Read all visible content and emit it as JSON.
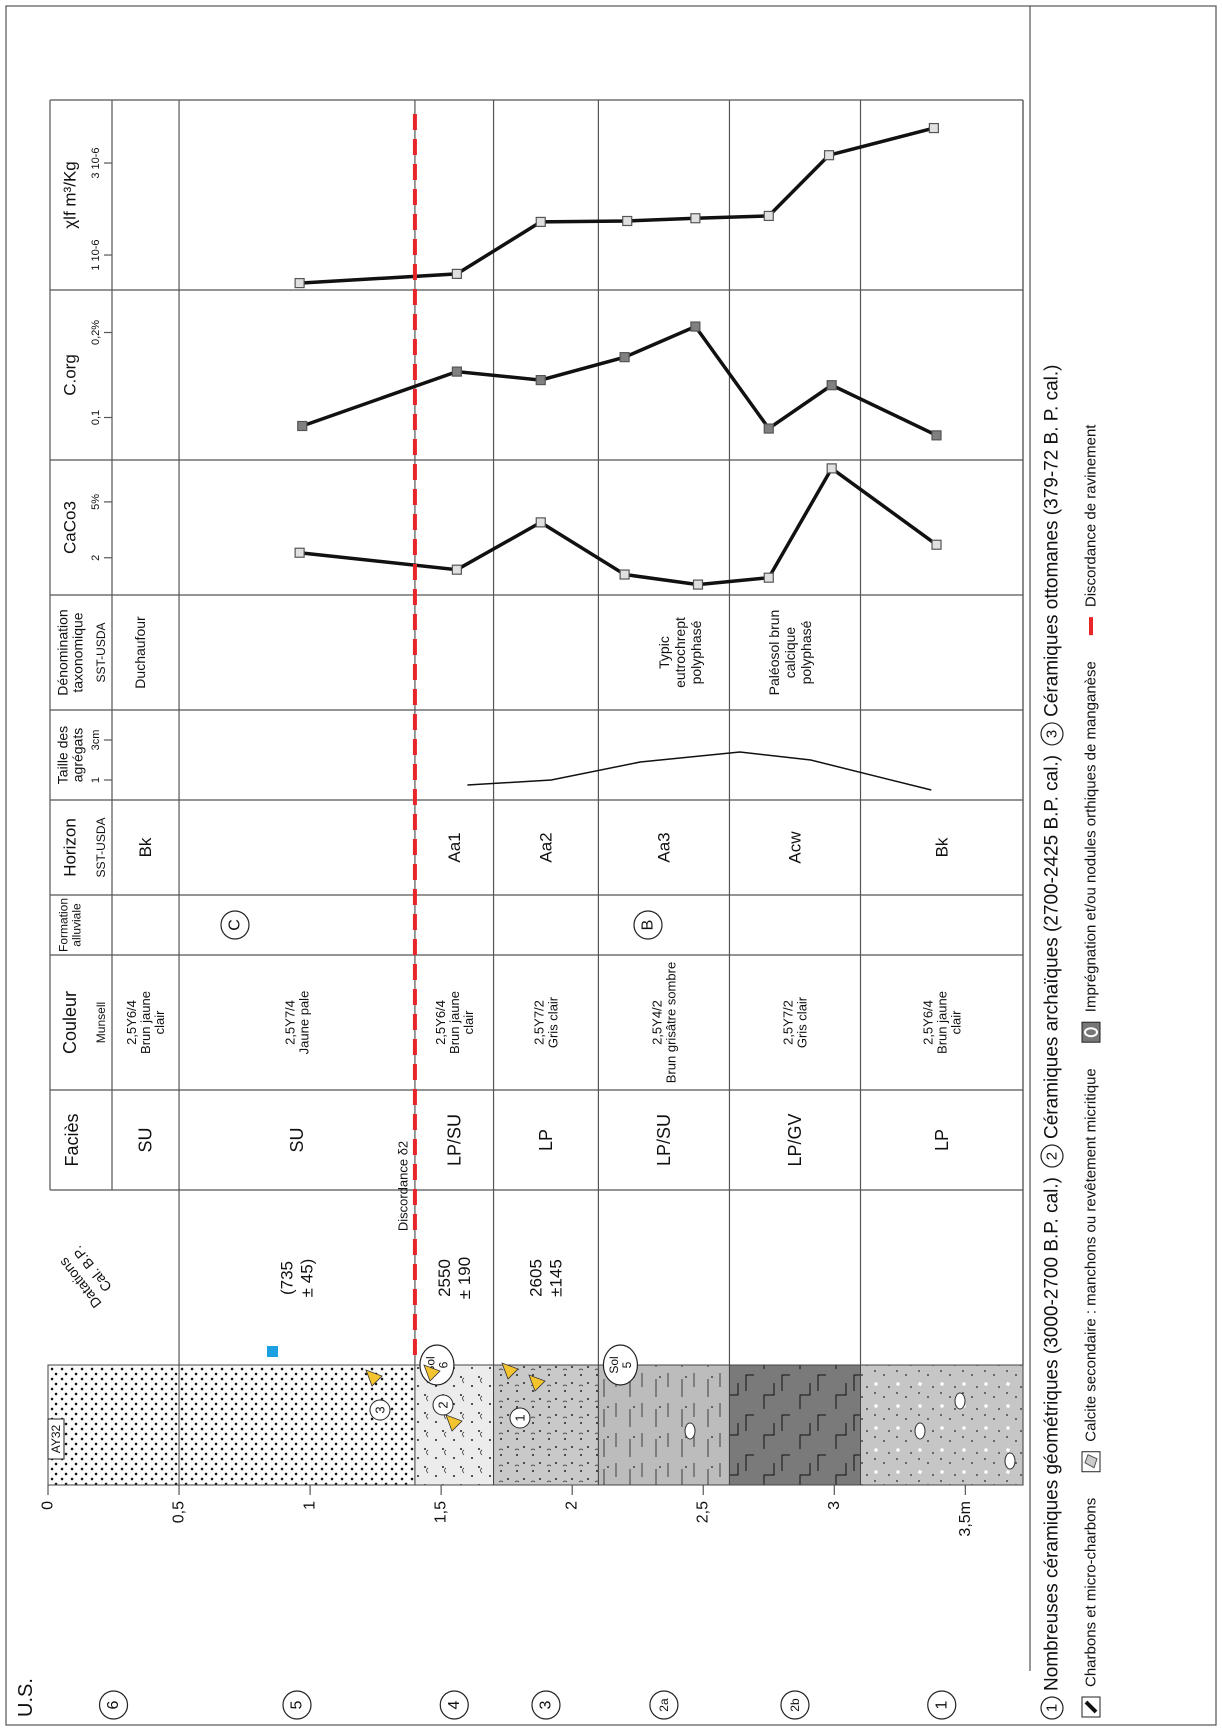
{
  "us_header": "U.S.",
  "log": {
    "label": "AY32",
    "depth_lim": [
      0,
      3.72
    ],
    "depth_ticks": [
      0,
      {
        "value": 0.5,
        "label": "0,5"
      },
      1,
      {
        "value": 1.5,
        "label": "1,5"
      },
      2,
      {
        "value": 2.5,
        "label": "2,5"
      },
      3,
      {
        "value": 3.5,
        "label": "3,5m"
      }
    ],
    "ceramics": [
      "3",
      "2",
      "1"
    ]
  },
  "header": {
    "datations": [
      "Datations",
      "Cal. B.P."
    ],
    "facies": "Faciès",
    "couleur": "Couleur",
    "munsell": "Munsell",
    "formation": [
      "Formation",
      "alluviale"
    ],
    "horizon": "Horizon",
    "horizon_sub": "SST-USDA",
    "denomination": [
      "Dénomination",
      "taxonomique"
    ],
    "denomination_sub": "SST-USDA",
    "duchaufour": "Duchaufour"
  },
  "rows": [
    {
      "top": 0,
      "bottom": 0.5,
      "us": "6",
      "facies": "SU",
      "couleur": [
        "2,5Y6/4",
        "Brun jaune",
        "clair"
      ],
      "horizon": "Bk"
    },
    {
      "top": 0.5,
      "bottom": 1.4,
      "us": "5",
      "datation": [
        "(735",
        "± 45)"
      ],
      "facies": "SU",
      "couleur": [
        "2,5Y7/4",
        "Jaune pale"
      ]
    },
    {
      "top": 1.4,
      "bottom": 1.7,
      "us": "4",
      "datation": [
        "2550",
        "± 190"
      ],
      "facies": "LP/SU",
      "couleur": [
        "2,5Y6/4",
        "Brun jaune",
        "clair"
      ],
      "horizon": "Aa1",
      "sol": [
        "Sol",
        "6"
      ]
    },
    {
      "top": 1.7,
      "bottom": 2.1,
      "us": "3",
      "datation": [
        "2605",
        "±145"
      ],
      "facies": "LP",
      "couleur": [
        "2,5Y7/2",
        "Gris clair"
      ],
      "horizon": "Aa2"
    },
    {
      "top": 2.1,
      "bottom": 2.6,
      "us": "2a",
      "facies": "LP/SU",
      "couleur": [
        "2,5Y4/2",
        "Brun grisâtre sombre"
      ],
      "horizon": "Aa3",
      "sol": [
        "Sol",
        "5"
      ]
    },
    {
      "top": 2.6,
      "bottom": 3.1,
      "us": "2b",
      "facies": "LP/GV",
      "couleur": [
        "2,5Y7/2",
        "Gris clair"
      ],
      "horizon": "Acw"
    },
    {
      "top": 3.1,
      "bottom": 3.72,
      "us": "1",
      "facies": "LP",
      "couleur": [
        "2,5Y6/4",
        "Brun jaune",
        "clair"
      ],
      "horizon": "Bk"
    }
  ],
  "formations": [
    "C",
    "B"
  ],
  "denominations": [
    [
      "Typic",
      "eutrochrept",
      "polyphasé"
    ],
    [
      "Paléosol brun",
      "calcique",
      "polyphasé"
    ]
  ],
  "discordance": {
    "label": "Discordance δ2",
    "depth": 1.4,
    "color": "#e8262a"
  },
  "plots": [
    {
      "type": "line",
      "title": [
        "Taille des",
        "agrégats"
      ],
      "xlim": [
        0,
        4.5
      ],
      "xticks": [
        1,
        {
          "value": 3,
          "label": "3cm"
        }
      ],
      "depth": [
        1.6,
        1.92,
        2.26,
        2.64,
        2.91,
        3.37
      ],
      "values": [
        0.75,
        1.0,
        1.9,
        2.4,
        2.0,
        0.5
      ],
      "markers": false
    },
    {
      "type": "line",
      "title": "CaCo3",
      "xlim": [
        0,
        7.25
      ],
      "xticks": [
        2,
        {
          "value": 5,
          "label": "5%"
        }
      ],
      "depth": [
        0.96,
        1.56,
        1.88,
        2.2,
        2.48,
        2.75,
        2.99,
        3.39
      ],
      "values": [
        2.27,
        1.36,
        3.9,
        1.1,
        0.56,
        0.93,
        6.8,
        2.7
      ],
      "markers": true,
      "marker_color": "#e0e0e0"
    },
    {
      "type": "line",
      "title": "C.org",
      "xlim": [
        0.05,
        0.25
      ],
      "xticks": [
        {
          "value": 0.1,
          "label": "0,1"
        },
        {
          "value": 0.2,
          "label": "0,2%"
        }
      ],
      "depth": [
        0.97,
        1.56,
        1.88,
        2.2,
        2.47,
        2.75,
        2.99,
        3.39
      ],
      "values": [
        0.09,
        0.154,
        0.144,
        0.171,
        0.207,
        0.087,
        0.138,
        0.079
      ],
      "markers": true,
      "marker_color": "#808080"
    },
    {
      "type": "line",
      "title": "χlf m³/Kg",
      "xlim": [
        0.24,
        4.37
      ],
      "xticks": [
        {
          "value": 1,
          "label": "1 10-6"
        },
        {
          "value": 3,
          "label": "3 10-6"
        }
      ],
      "depth": [
        0.96,
        1.56,
        1.88,
        2.21,
        2.47,
        2.75,
        2.98,
        3.38
      ],
      "values": [
        0.39,
        0.59,
        1.72,
        1.74,
        1.8,
        1.85,
        3.17,
        3.76
      ],
      "markers": true,
      "marker_color": "#e0e0e0"
    }
  ],
  "legend": {
    "ceramics": [
      {
        "num": "1",
        "text": "Nombreuses céramiques géométriques (3000-2700 B.P. cal.)"
      },
      {
        "num": "2",
        "text": "Céramiques archaïques (2700-2425 B.P. cal.)"
      },
      {
        "num": "3",
        "text": "Céramiques ottomanes (379-72 B. P. cal.)"
      }
    ],
    "symbols": [
      "Charbons et micro-charbons",
      "Calcite secondaire : manchons ou revêtement micritique",
      "Imprégnation et/ou nodules orthiques de manganèse",
      "Discordance de ravinement"
    ]
  }
}
